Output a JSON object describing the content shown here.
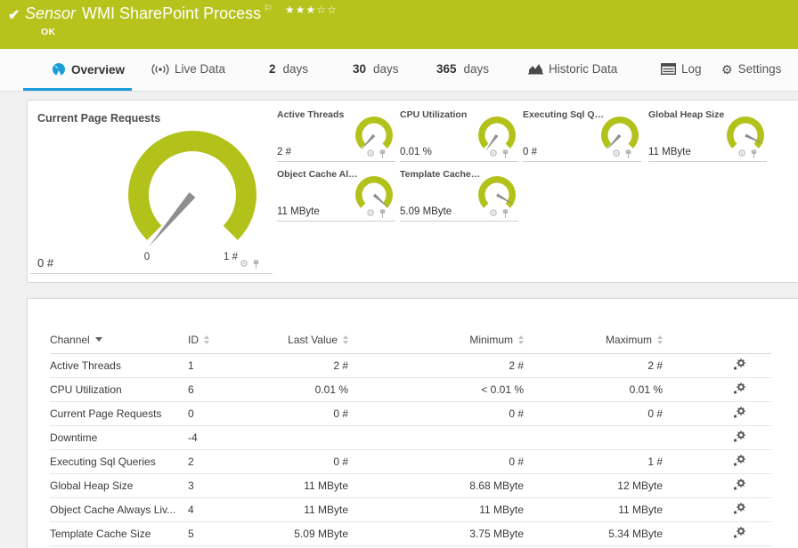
{
  "colors": {
    "brand_green": "#b5c31c",
    "accent_blue": "#1b9dd9",
    "gauge_green": "#b3c21a",
    "needle_gray": "#8e8e8e"
  },
  "header": {
    "sensor_type": "Sensor",
    "title": "WMI SharePoint Process",
    "status": "OK",
    "rating": {
      "filled": 3,
      "total": 5,
      "stars_filled": "★★★",
      "stars_empty": "☆☆"
    }
  },
  "tabs": [
    {
      "label": "Overview",
      "active": true
    },
    {
      "label": "Live Data"
    },
    {
      "num": "2",
      "label": "days"
    },
    {
      "num": "30",
      "label": "days"
    },
    {
      "num": "365",
      "label": "days"
    },
    {
      "label": "Historic Data"
    },
    {
      "label": "Log"
    },
    {
      "label": "Settings"
    }
  ],
  "gauges": {
    "primary": {
      "title": "Current Page Requests",
      "value": "0 #",
      "scale_min": "0",
      "scale_max": "1 #",
      "needle_deg": 230
    },
    "small": [
      {
        "title": "Active Threads",
        "value": "2 #",
        "needle_deg": 228
      },
      {
        "title": "CPU Utilization",
        "value": "0.01 %",
        "needle_deg": 234
      },
      {
        "title": "Executing Sql Queries",
        "value": "0 #",
        "needle_deg": 228
      },
      {
        "title": "Global Heap Size",
        "value": "11 MByte",
        "needle_deg": -26
      },
      {
        "title": "Object Cache Always L...",
        "value": "11 MByte",
        "needle_deg": -42
      },
      {
        "title": "Template Cache Size",
        "value": "5.09 MByte",
        "needle_deg": -30
      }
    ]
  },
  "table": {
    "columns": [
      "Channel",
      "ID",
      "Last Value",
      "Minimum",
      "Maximum"
    ],
    "rows": [
      {
        "channel": "Active Threads",
        "id": "1",
        "last": "2 #",
        "min": "2 #",
        "max": "2 #"
      },
      {
        "channel": "CPU Utilization",
        "id": "6",
        "last": "0.01 %",
        "min": "< 0.01 %",
        "max": "0.01 %"
      },
      {
        "channel": "Current Page Requests",
        "id": "0",
        "last": "0 #",
        "min": "0 #",
        "max": "0 #"
      },
      {
        "channel": "Downtime",
        "id": "-4",
        "last": "",
        "min": "",
        "max": ""
      },
      {
        "channel": "Executing Sql Queries",
        "id": "2",
        "last": "0 #",
        "min": "0 #",
        "max": "1 #"
      },
      {
        "channel": "Global Heap Size",
        "id": "3",
        "last": "11 MByte",
        "min": "8.68 MByte",
        "max": "12 MByte"
      },
      {
        "channel": "Object Cache Always Liv...",
        "id": "4",
        "last": "11 MByte",
        "min": "11 MByte",
        "max": "11 MByte"
      },
      {
        "channel": "Template Cache Size",
        "id": "5",
        "last": "5.09 MByte",
        "min": "3.75 MByte",
        "max": "5.34 MByte"
      }
    ]
  }
}
